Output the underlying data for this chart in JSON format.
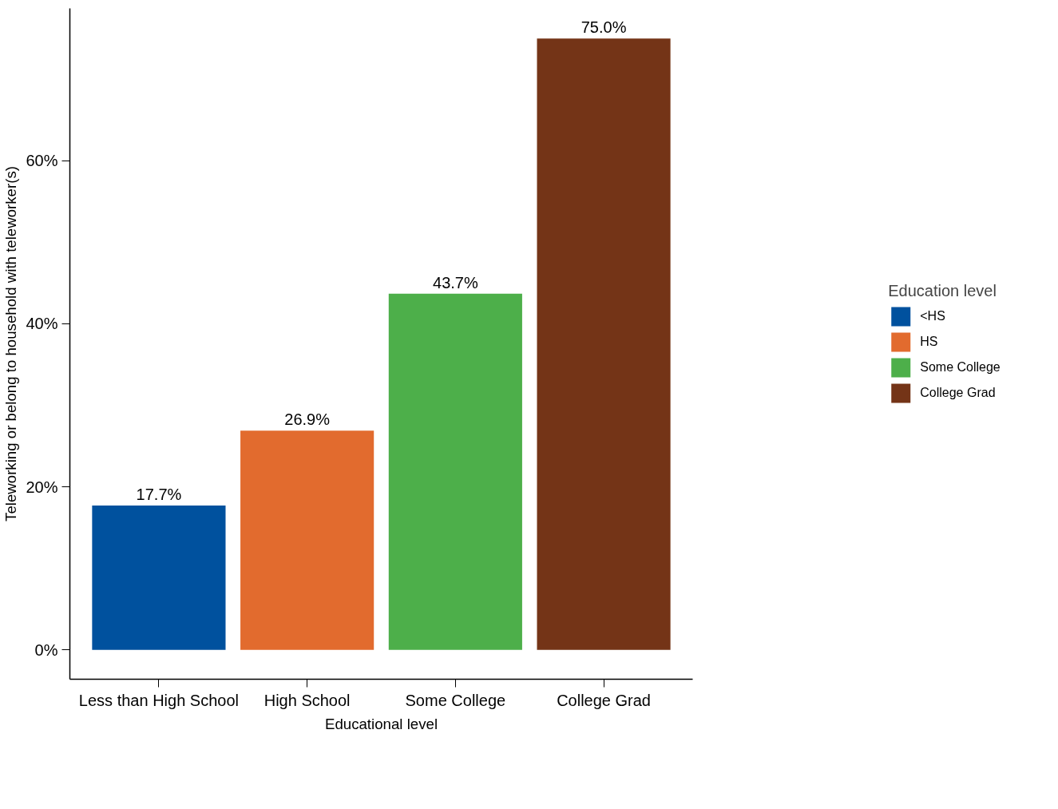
{
  "chart_data": {
    "type": "bar",
    "xlabel": "Educational level",
    "ylabel": "Teleworking or belong to household with teleworker(s)",
    "legend_title": "Education level",
    "legend": "right",
    "grid": false,
    "categories": [
      "Less than High School",
      "High School",
      "Some College",
      "College Grad"
    ],
    "ylim": [
      -3.6,
      78.7
    ],
    "yticks": [
      {
        "value": 0,
        "label": "0%"
      },
      {
        "value": 20,
        "label": "20%"
      },
      {
        "value": 40,
        "label": "40%"
      },
      {
        "value": 60,
        "label": "60%"
      }
    ],
    "series": [
      {
        "name": "<HS",
        "color": "#00519e",
        "values": [
          17.7,
          null,
          null,
          null
        ],
        "value_labels": [
          "17.7%",
          null,
          null,
          null
        ]
      },
      {
        "name": "HS",
        "color": "#e26b2e",
        "values": [
          null,
          26.9,
          null,
          null
        ],
        "value_labels": [
          null,
          "26.9%",
          null,
          null
        ]
      },
      {
        "name": "Some College",
        "color": "#4daf4a",
        "values": [
          null,
          null,
          43.7,
          null
        ],
        "value_labels": [
          null,
          null,
          "43.7%",
          null
        ]
      },
      {
        "name": "College Grad",
        "color": "#743417",
        "values": [
          null,
          null,
          null,
          75.0
        ],
        "value_labels": [
          null,
          null,
          null,
          "75.0%"
        ]
      }
    ]
  }
}
